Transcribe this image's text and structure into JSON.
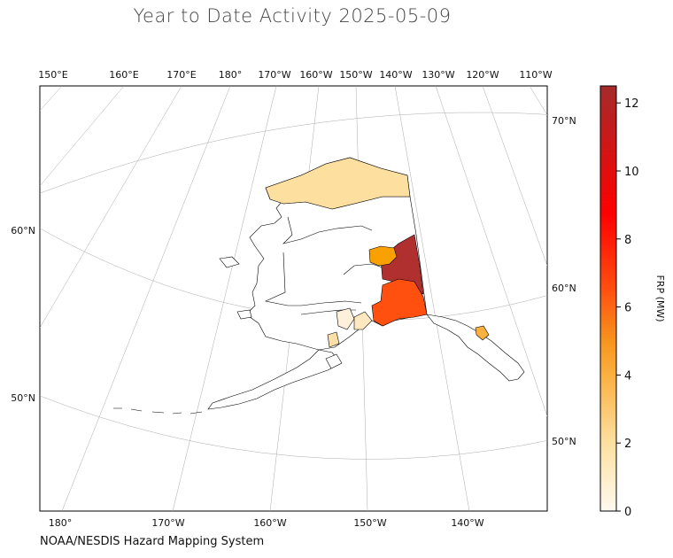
{
  "title": "Year to Date Activity 2025-05-09",
  "credit": "NOAA/NESDIS Hazard Mapping System",
  "top_lon_labels": [
    "150°E",
    "160°E",
    "170°E",
    "180°",
    "170°W",
    "160°W",
    "150°W",
    "140°W",
    "130°W",
    "120°W",
    "110°W"
  ],
  "bottom_lon_labels": [
    "180°",
    "170°W",
    "160°W",
    "150°W",
    "140°W"
  ],
  "left_lat_labels": [
    "60°N",
    "50°N"
  ],
  "right_lat_labels": [
    "70°N",
    "60°N",
    "50°N"
  ],
  "colorbar": {
    "label": "FRP (MW)",
    "ticks": [
      "0",
      "2",
      "4",
      "6",
      "8",
      "10",
      "12"
    ],
    "min": 0,
    "max": 12.5,
    "colors": [
      "#fffaf0",
      "#fde0a0",
      "#fbb040",
      "#f7941d",
      "#ff5010",
      "#ff0000",
      "#b22222"
    ]
  },
  "regions": {
    "north_slope": "#fde0a0",
    "yukon_flats": "#b03030",
    "fairbanks": "#f7a000",
    "southeast_fairbanks": "#ff5010",
    "kenai": "#fff0dc",
    "anchorage": "#fde8c0",
    "haines": "#fbb040",
    "matsu": "#fde0a8"
  }
}
